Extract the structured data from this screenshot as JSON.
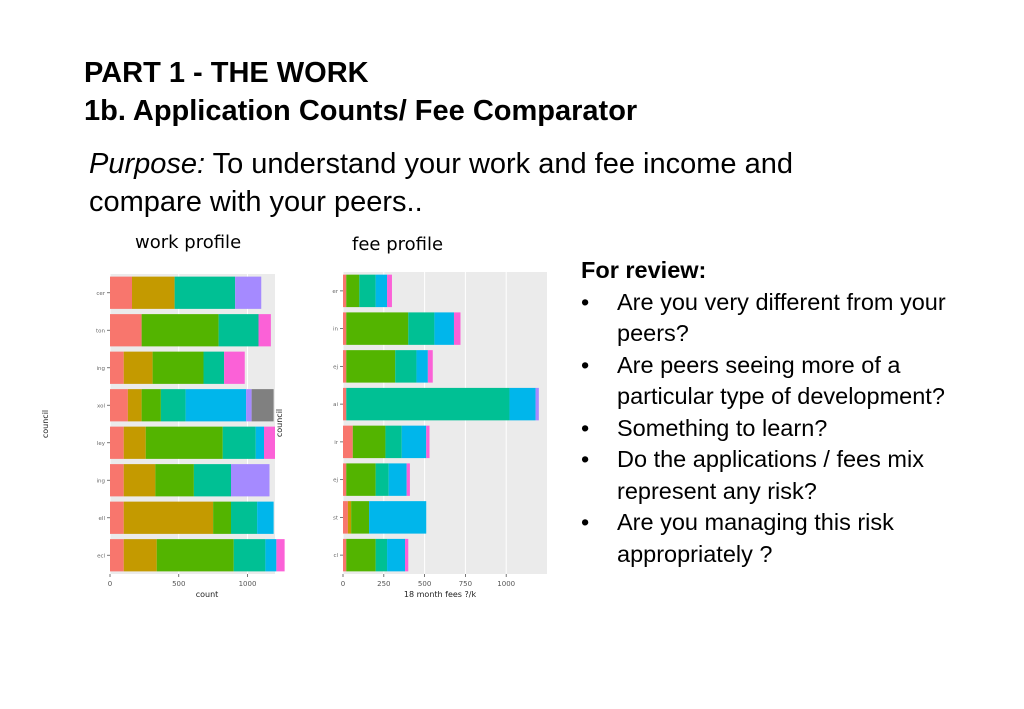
{
  "header": {
    "line1": "PART 1 - THE WORK",
    "line2": "1b. Application Counts/ Fee Comparator"
  },
  "purpose": {
    "label": "Purpose:",
    "text": " To understand your work and fee income and compare with your peers.."
  },
  "review": {
    "heading": "For review:",
    "bullet": "•",
    "items": [
      "Are you very different from your peers?",
      "Are peers seeing more of a particular type of development?",
      "Something to learn?",
      "Do the applications / fees mix represent any risk?",
      "Are you managing this risk appropriately ?"
    ]
  },
  "chart_data": [
    {
      "type": "bar",
      "orientation": "horizontal",
      "stacked": true,
      "title": "work profile",
      "xlabel": "count",
      "ylabel": "council",
      "xlim": [
        0,
        1200
      ],
      "xticks": [
        0,
        500,
        1000
      ],
      "grid": true,
      "categories": [
        "cer",
        "ton",
        "ing",
        "xol",
        "ley",
        "ing",
        "ell",
        "ecl"
      ],
      "segment_colors": [
        "#F8766D",
        "#C49A00",
        "#53B400",
        "#00C094",
        "#00B6EB",
        "#A58AFF",
        "#FB61D7",
        "#808080"
      ],
      "rows": [
        [
          160,
          0,
          150,
          220,
          0,
          440,
          0,
          0,
          190,
          0
        ],
        [
          90,
          0,
          0,
          0,
          560,
          0,
          290,
          0,
          0,
          90
        ],
        [
          100,
          0,
          210,
          0,
          370,
          0,
          150,
          0,
          0,
          150
        ],
        [
          100,
          30,
          100,
          0,
          0,
          140,
          80,
          40,
          0,
          0,
          0,
          60,
          0,
          160
        ],
        [
          100,
          0,
          160,
          0,
          560,
          0,
          240,
          60,
          80,
          0
        ],
        [
          100,
          0,
          230,
          0,
          280,
          0,
          270,
          0,
          0,
          280
        ],
        [
          100,
          0,
          650,
          0,
          0,
          130,
          0,
          190,
          60,
          0
        ],
        [
          100,
          0,
          240,
          0,
          0,
          560,
          0,
          230,
          80,
          60
        ]
      ],
      "row_segment_colors": [
        [
          "#F8766D",
          "#C49A00",
          "#53B400",
          "#00C094",
          "#A58AFF"
        ],
        [
          "#F8766D",
          "#53B400",
          "#00C094",
          "#FB61D7"
        ],
        [
          "#F8766D",
          "#C49A00",
          "#53B400",
          "#00C094",
          "#FB61D7"
        ],
        [
          "#F8766D",
          "#C49A00",
          "#53B400",
          "#00C094",
          "#00B6EB",
          "#A58AFF",
          "#808080"
        ],
        [
          "#F8766D",
          "#C49A00",
          "#53B400",
          "#00C094",
          "#00B6EB",
          "#FB61D7"
        ],
        [
          "#F8766D",
          "#C49A00",
          "#53B400",
          "#00C094",
          "#A58AFF"
        ],
        [
          "#F8766D",
          "#C49A00",
          "#53B400",
          "#00C094",
          "#00B6EB"
        ],
        [
          "#F8766D",
          "#C49A00",
          "#53B400",
          "#00C094",
          "#00B6EB",
          "#FB61D7"
        ]
      ],
      "row_segment_values": [
        [
          160,
          310,
          0,
          440,
          190
        ],
        [
          230,
          560,
          290,
          90
        ],
        [
          100,
          210,
          370,
          150,
          150
        ],
        [
          130,
          100,
          140,
          180,
          440,
          40,
          160
        ],
        [
          100,
          160,
          560,
          240,
          60,
          80
        ],
        [
          100,
          230,
          280,
          270,
          280
        ],
        [
          100,
          650,
          130,
          190,
          120
        ],
        [
          100,
          240,
          560,
          230,
          80,
          60
        ]
      ]
    },
    {
      "type": "bar",
      "orientation": "horizontal",
      "stacked": true,
      "title": "fee profile",
      "xlabel": "18 month fees ?/k",
      "ylabel": "council",
      "xlim": [
        0,
        1250
      ],
      "xticks": [
        0,
        250,
        500,
        750,
        1000
      ],
      "grid": true,
      "categories": [
        "er",
        "in",
        "ej",
        "ai",
        "ir",
        "ej",
        "st",
        "cl"
      ],
      "row_segment_colors": [
        [
          "#F8766D",
          "#53B400",
          "#00C094",
          "#00B6EB",
          "#FB61D7"
        ],
        [
          "#F8766D",
          "#53B400",
          "#00C094",
          "#00B6EB",
          "#FB61D7"
        ],
        [
          "#F8766D",
          "#53B400",
          "#00C094",
          "#00B6EB",
          "#FB61D7"
        ],
        [
          "#F8766D",
          "#00C094",
          "#00B6EB",
          "#A58AFF"
        ],
        [
          "#F8766D",
          "#53B400",
          "#00C094",
          "#00B6EB",
          "#FB61D7"
        ],
        [
          "#F8766D",
          "#53B400",
          "#00C094",
          "#00B6EB",
          "#FB61D7"
        ],
        [
          "#F8766D",
          "#C49A00",
          "#53B400",
          "#00B6EB"
        ],
        [
          "#F8766D",
          "#53B400",
          "#00C094",
          "#00B6EB",
          "#FB61D7"
        ]
      ],
      "row_segment_values": [
        [
          20,
          80,
          100,
          70,
          30
        ],
        [
          20,
          380,
          160,
          120,
          40
        ],
        [
          20,
          300,
          130,
          70,
          30
        ],
        [
          20,
          1000,
          160,
          20
        ],
        [
          60,
          200,
          100,
          150,
          20
        ],
        [
          20,
          180,
          80,
          110,
          20
        ],
        [
          30,
          20,
          110,
          350
        ],
        [
          20,
          180,
          70,
          110,
          20
        ]
      ]
    }
  ]
}
